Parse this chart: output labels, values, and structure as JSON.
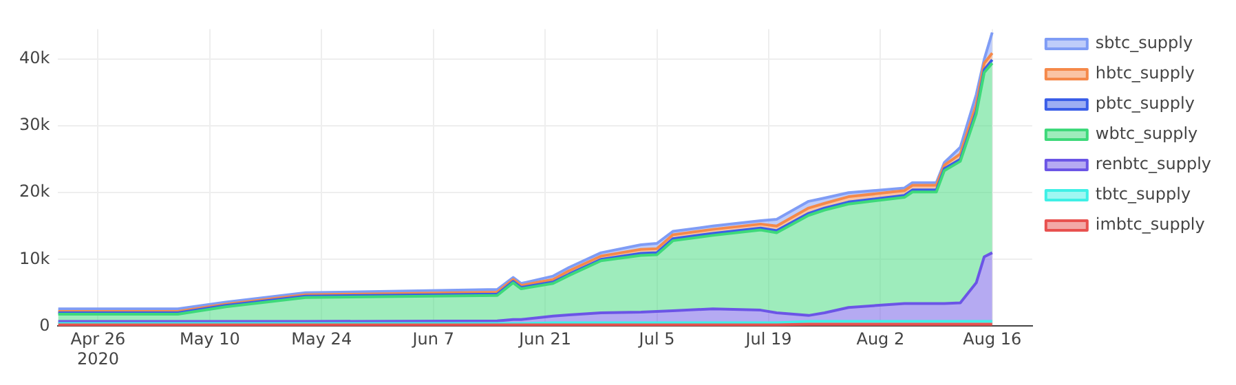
{
  "chart_data": {
    "type": "area",
    "stacked": true,
    "grid": true,
    "legend": "right",
    "x": [
      "2020-04-21",
      "2020-05-06",
      "2020-05-12",
      "2020-05-22",
      "2020-06-15",
      "2020-06-17",
      "2020-06-18",
      "2020-06-22",
      "2020-06-24",
      "2020-06-28",
      "2020-07-03",
      "2020-07-05",
      "2020-07-07",
      "2020-07-12",
      "2020-07-18",
      "2020-07-20",
      "2020-07-24",
      "2020-07-26",
      "2020-07-29",
      "2020-08-05",
      "2020-08-06",
      "2020-08-09",
      "2020-08-10",
      "2020-08-12",
      "2020-08-14",
      "2020-08-15",
      "2020-08-16"
    ],
    "xlim": [
      "2020-04-21",
      "2020-08-21"
    ],
    "xticks": [
      {
        "value": "2020-04-26",
        "label": "Apr 26\n2020"
      },
      {
        "value": "2020-05-10",
        "label": "May 10"
      },
      {
        "value": "2020-05-24",
        "label": "May 24"
      },
      {
        "value": "2020-06-07",
        "label": "Jun 7"
      },
      {
        "value": "2020-06-21",
        "label": "Jun 21"
      },
      {
        "value": "2020-07-05",
        "label": "Jul 5"
      },
      {
        "value": "2020-07-19",
        "label": "Jul 19"
      },
      {
        "value": "2020-08-02",
        "label": "Aug 2"
      },
      {
        "value": "2020-08-16",
        "label": "Aug 16"
      }
    ],
    "ylim": [
      0,
      44500
    ],
    "yticks": [
      0,
      {
        "value": 10000,
        "label": "10k"
      },
      {
        "value": 20000,
        "label": "20k"
      },
      {
        "value": 30000,
        "label": "30k"
      },
      {
        "value": 40000,
        "label": "40k"
      }
    ],
    "series": [
      {
        "name": "imbtc_supply",
        "color": "#e8514f",
        "values": [
          200,
          200,
          200,
          200,
          200,
          200,
          200,
          200,
          200,
          200,
          200,
          200,
          200,
          200,
          200,
          200,
          300,
          300,
          300,
          300,
          300,
          300,
          300,
          300,
          300,
          300,
          300
        ]
      },
      {
        "name": "tbtc_supply",
        "color": "#3ff0e6",
        "values": [
          200,
          200,
          200,
          200,
          200,
          200,
          200,
          300,
          300,
          300,
          300,
          300,
          300,
          300,
          300,
          300,
          400,
          400,
          400,
          400,
          400,
          400,
          400,
          400,
          400,
          400,
          400
        ]
      },
      {
        "name": "renbtc_supply",
        "color": "#6b55e6",
        "values": [
          300,
          300,
          300,
          300,
          400,
          600,
          600,
          1000,
          1200,
          1500,
          1600,
          1700,
          1800,
          2100,
          1900,
          1500,
          900,
          1300,
          2100,
          2700,
          2700,
          2700,
          2700,
          2800,
          5800,
          9700,
          10300
        ]
      },
      {
        "name": "wbtc_supply",
        "color": "#3ed97a",
        "values": [
          1100,
          1100,
          2200,
          3600,
          3800,
          5500,
          4600,
          4900,
          5900,
          7800,
          8500,
          8500,
          10500,
          11000,
          12000,
          12000,
          15000,
          15400,
          15500,
          15900,
          16700,
          16700,
          19900,
          21200,
          25300,
          27600,
          28400
        ]
      },
      {
        "name": "pbtc_supply",
        "color": "#3a5ee8",
        "values": [
          200,
          200,
          200,
          200,
          200,
          200,
          200,
          200,
          200,
          200,
          300,
          300,
          300,
          300,
          300,
          300,
          300,
          300,
          300,
          300,
          300,
          300,
          300,
          300,
          400,
          400,
          500
        ]
      },
      {
        "name": "hbtc_supply",
        "color": "#f5894a",
        "values": [
          200,
          200,
          200,
          200,
          300,
          300,
          300,
          400,
          500,
          500,
          600,
          600,
          600,
          600,
          600,
          700,
          800,
          700,
          800,
          700,
          700,
          700,
          500,
          800,
          1000,
          1000,
          1000
        ]
      },
      {
        "name": "sbtc_supply",
        "color": "#7f9cf5",
        "values": [
          400,
          400,
          300,
          300,
          400,
          300,
          300,
          500,
          500,
          500,
          700,
          800,
          500,
          500,
          500,
          1000,
          1000,
          800,
          600,
          400,
          400,
          400,
          400,
          1000,
          1500,
          600,
          3100
        ]
      }
    ]
  }
}
